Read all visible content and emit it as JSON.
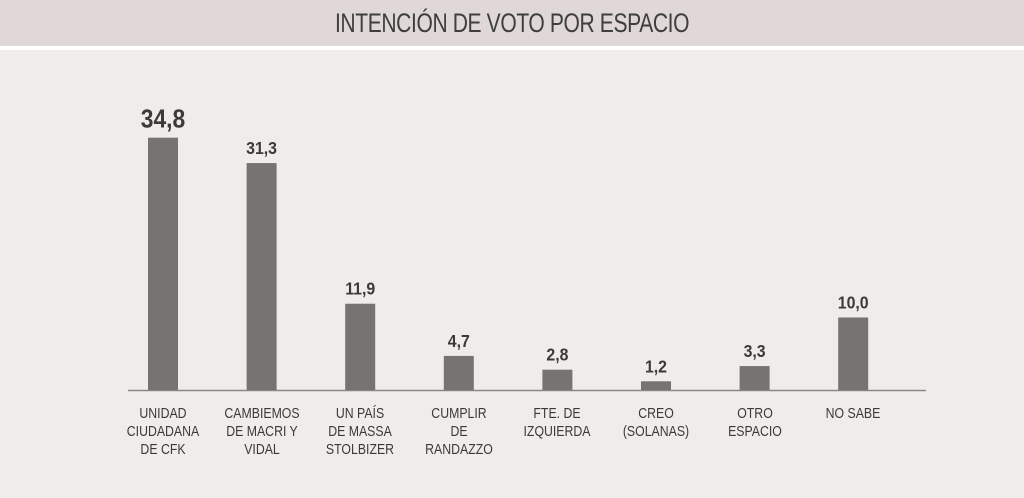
{
  "chart_data": {
    "type": "bar",
    "title": "INTENCIÓN DE VOTO POR ESPACIO",
    "categories": [
      "UNIDAD\nCIUDADANA\nDE CFK",
      "CAMBIEMOS\nDE MACRI Y\nVIDAL",
      "UN PAÍS\nDE MASSA\nSTOLBIZER",
      "CUMPLIR\nDE RANDAZZO",
      "FTE. DE\nIZQUIERDA",
      "CREO\n(SOLANAS)",
      "OTRO\nESPACIO",
      "NO SABE"
    ],
    "values": [
      34.8,
      31.3,
      11.9,
      4.7,
      2.8,
      1.2,
      3.3,
      10.0
    ],
    "value_labels": [
      "34,8",
      "31,3",
      "11,9",
      "4,7",
      "2,8",
      "1,2",
      "3,3",
      "10,0"
    ],
    "xlabel": "",
    "ylabel": "",
    "ylim": [
      0,
      36
    ],
    "grid": false,
    "bar_color": "#767370"
  }
}
